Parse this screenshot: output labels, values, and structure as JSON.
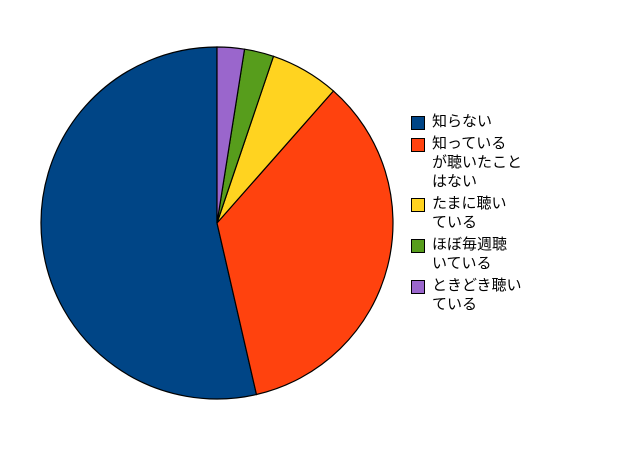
{
  "chart_data": {
    "type": "pie",
    "title": "",
    "start_angle": "12 o'clock",
    "direction": "counterclockwise",
    "legend_position": "right",
    "series": [
      {
        "name": "知らない",
        "label_lines": [
          "知らない"
        ],
        "value": 53.6,
        "color": "#004586"
      },
      {
        "name": "知っているが聴いたことはない",
        "label_lines": [
          "知っている",
          "が聴いたこと",
          "はない"
        ],
        "value": 34.9,
        "color": "#ff420e"
      },
      {
        "name": "たまに聴いている",
        "label_lines": [
          "たまに聴い",
          "ている"
        ],
        "value": 6.3,
        "color": "#ffd320"
      },
      {
        "name": "ほぼ毎週聴いている",
        "label_lines": [
          "ほぼ毎週聴",
          "いている"
        ],
        "value": 2.7,
        "color": "#579d1c"
      },
      {
        "name": "ときどき聴いている",
        "label_lines": [
          "ときどき聴い",
          "ている"
        ],
        "value": 2.5,
        "color": "#9a66cc"
      }
    ]
  }
}
